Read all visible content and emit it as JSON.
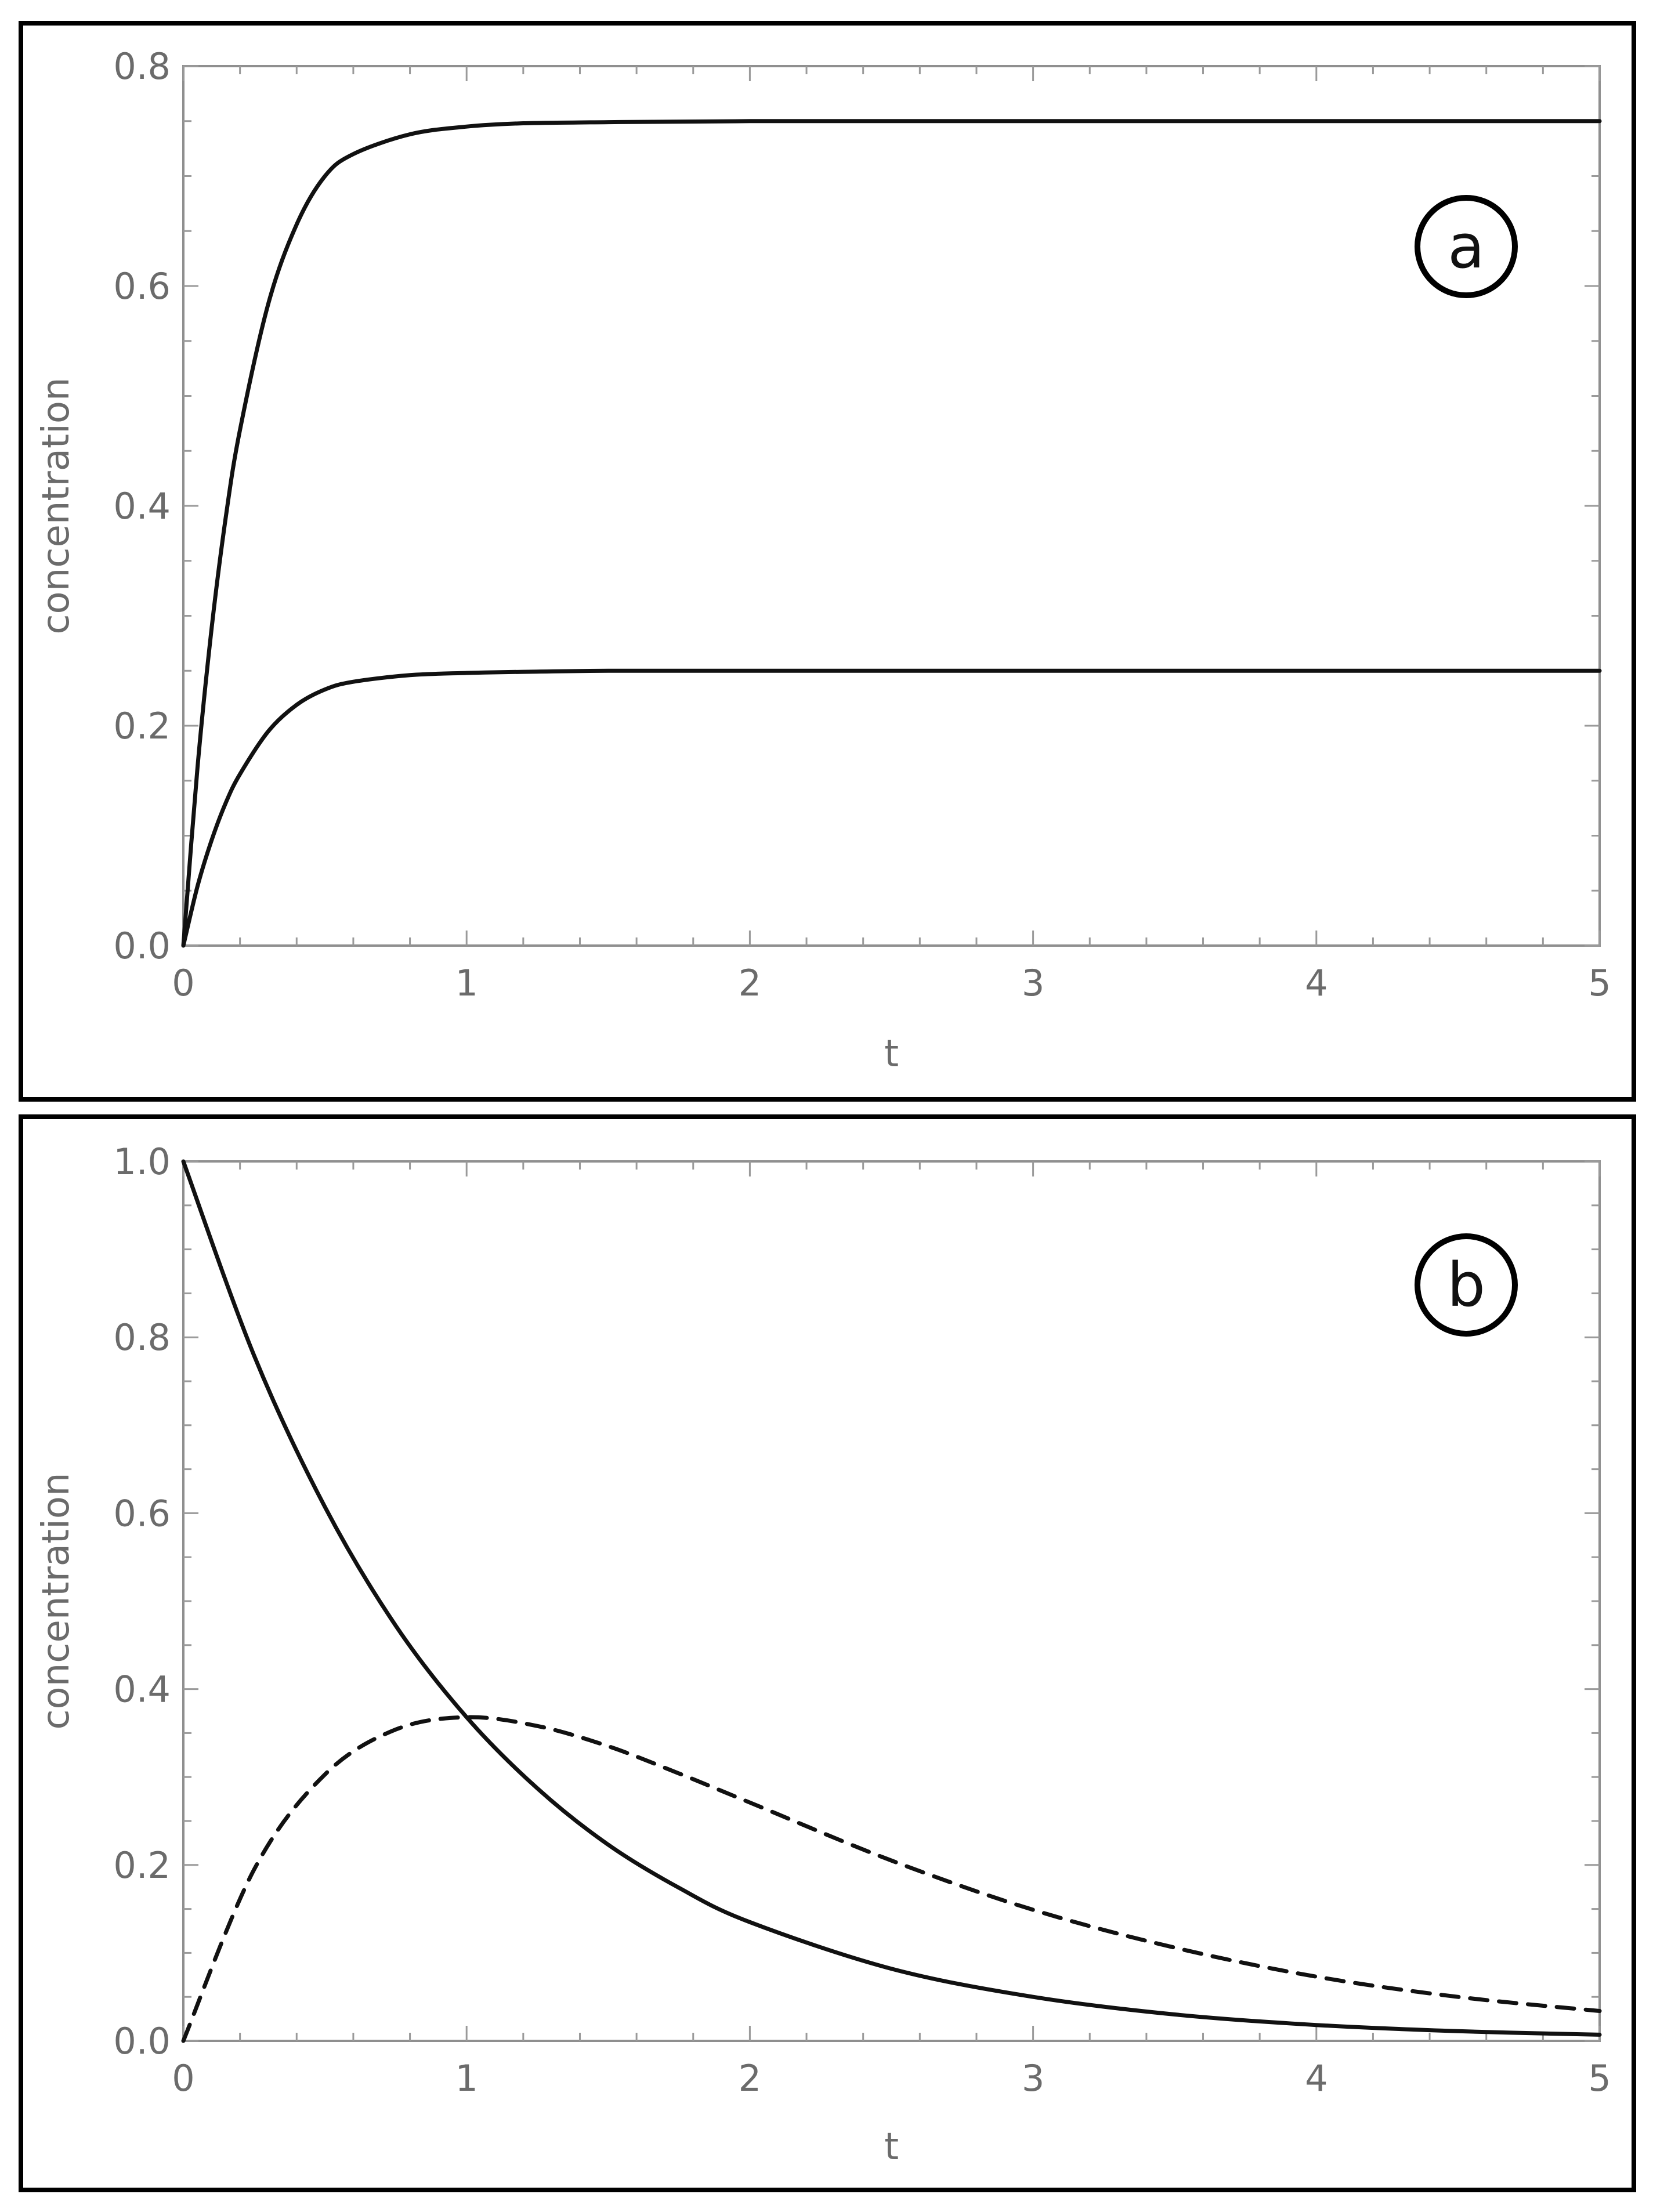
{
  "panels": [
    {
      "panel_label": "a",
      "chart_data": {
        "type": "line",
        "xlabel": "t",
        "ylabel": "concentration",
        "xlim": [
          0,
          5
        ],
        "ylim": [
          0,
          0.8
        ],
        "x_ticks": [
          0,
          1,
          2,
          3,
          4,
          5
        ],
        "x_tick_labels": [
          "0",
          "1",
          "2",
          "3",
          "4",
          "5"
        ],
        "y_ticks": [
          0.0,
          0.2,
          0.4,
          0.6,
          0.8
        ],
        "y_tick_labels": [
          "0.0",
          "0.2",
          "0.4",
          "0.6",
          "0.8"
        ],
        "grid": false,
        "legend": "none",
        "series": [
          {
            "line_style": "solid",
            "color": "#111111",
            "x": [
              0,
              0.05,
              0.1,
              0.15,
              0.2,
              0.3,
              0.4,
              0.5,
              0.6,
              0.8,
              1.0,
              1.2,
              1.5,
              2.0,
              3.0,
              4.0,
              5.0
            ],
            "y": [
              0,
              0.162,
              0.289,
              0.39,
              0.469,
              0.584,
              0.656,
              0.7,
              0.72,
              0.738,
              0.745,
              0.748,
              0.749,
              0.75,
              0.75,
              0.75,
              0.75
            ]
          },
          {
            "line_style": "solid",
            "color": "#111111",
            "x": [
              0,
              0.05,
              0.1,
              0.15,
              0.2,
              0.3,
              0.4,
              0.5,
              0.6,
              0.8,
              1.0,
              1.2,
              1.5,
              2.0,
              3.0,
              4.0,
              5.0
            ],
            "y": [
              0,
              0.054,
              0.096,
              0.13,
              0.156,
              0.195,
              0.219,
              0.233,
              0.24,
              0.246,
              0.248,
              0.249,
              0.25,
              0.25,
              0.25,
              0.25,
              0.25
            ]
          }
        ]
      }
    },
    {
      "panel_label": "b",
      "chart_data": {
        "type": "line",
        "xlabel": "t",
        "ylabel": "concentration",
        "xlim": [
          0,
          5
        ],
        "ylim": [
          0,
          1.0
        ],
        "x_ticks": [
          0,
          1,
          2,
          3,
          4,
          5
        ],
        "x_tick_labels": [
          "0",
          "1",
          "2",
          "3",
          "4",
          "5"
        ],
        "y_ticks": [
          0.0,
          0.2,
          0.4,
          0.6,
          0.8,
          1.0
        ],
        "y_tick_labels": [
          "0.0",
          "0.2",
          "0.4",
          "0.6",
          "0.8",
          "1.0"
        ],
        "grid": false,
        "legend": "none",
        "series": [
          {
            "line_style": "solid",
            "color": "#111111",
            "x": [
              0,
              0.25,
              0.5,
              0.75,
              1.0,
              1.25,
              1.5,
              1.75,
              2.0,
              2.5,
              3.0,
              3.5,
              4.0,
              4.5,
              5.0
            ],
            "y": [
              1.0,
              0.779,
              0.607,
              0.472,
              0.368,
              0.287,
              0.223,
              0.174,
              0.135,
              0.082,
              0.05,
              0.03,
              0.018,
              0.011,
              0.007
            ]
          },
          {
            "line_style": "dashed",
            "color": "#111111",
            "x": [
              0,
              0.25,
              0.5,
              0.75,
              1.0,
              1.25,
              1.5,
              1.75,
              2.0,
              2.5,
              3.0,
              3.5,
              4.0,
              4.5,
              5.0
            ],
            "y": [
              0,
              0.195,
              0.303,
              0.354,
              0.368,
              0.358,
              0.335,
              0.304,
              0.271,
              0.205,
              0.149,
              0.106,
              0.073,
              0.05,
              0.034
            ]
          }
        ]
      }
    }
  ]
}
